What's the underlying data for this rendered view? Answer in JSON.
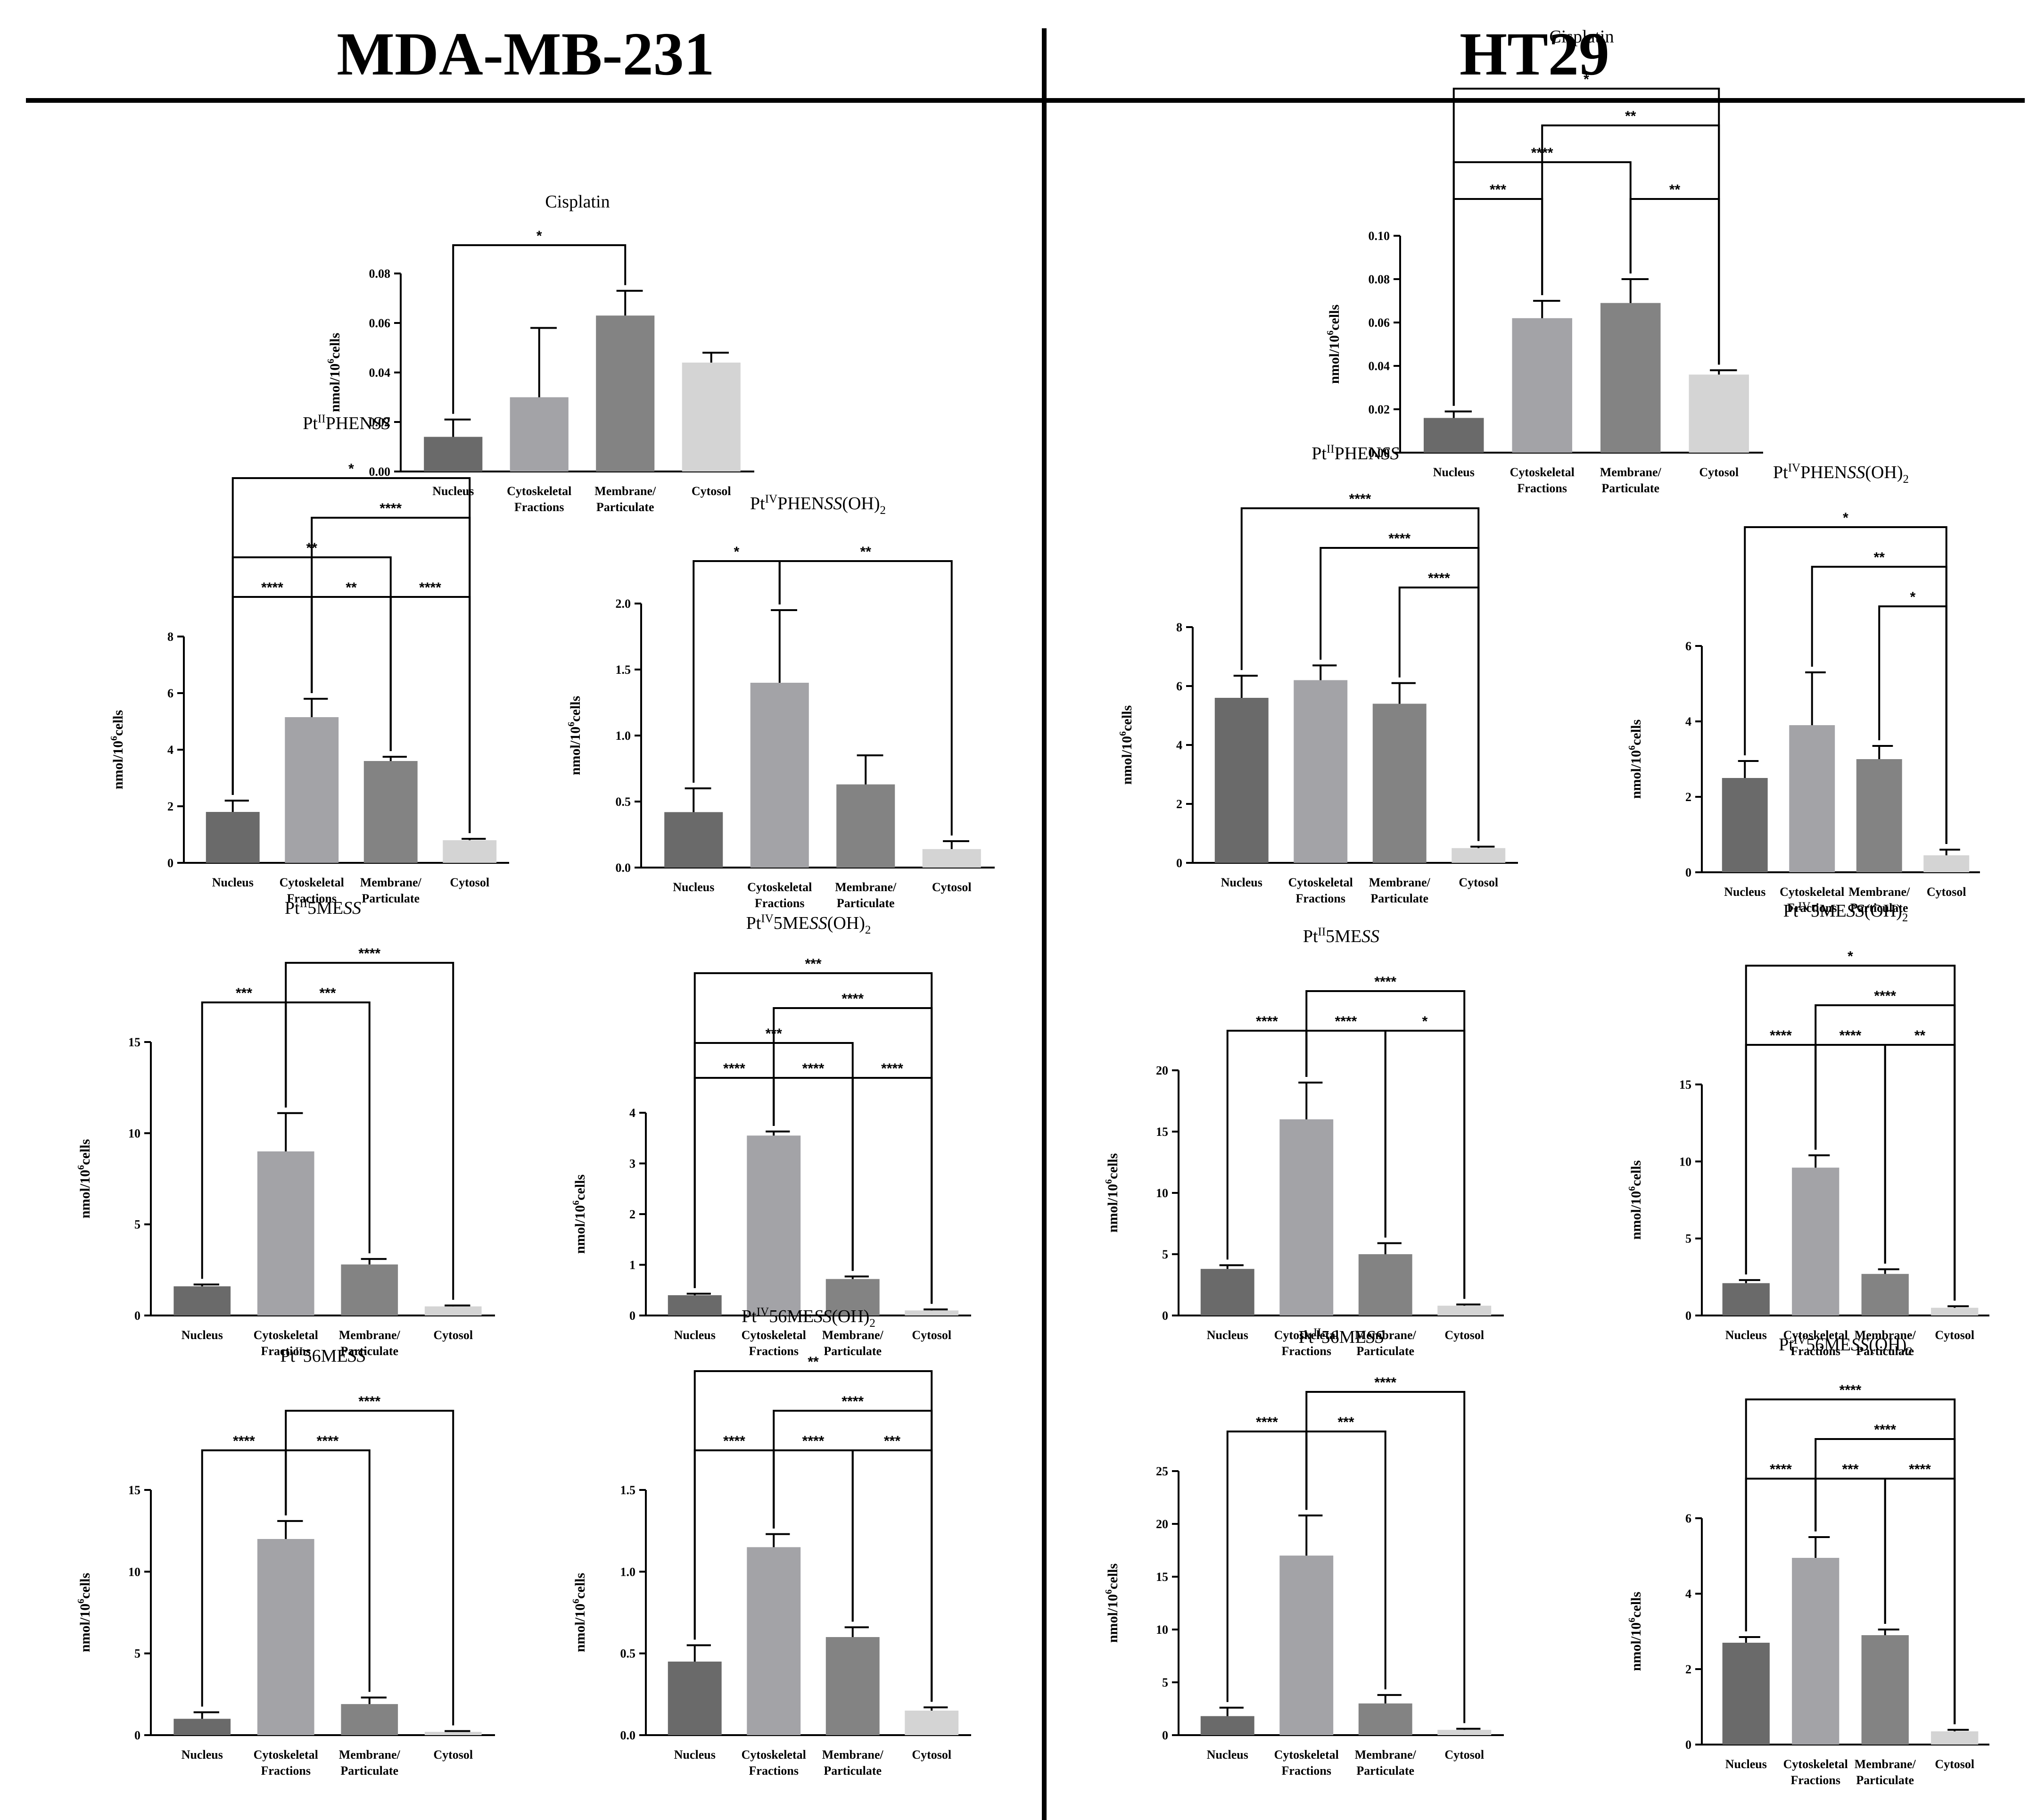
{
  "headers": {
    "left": "MDA-MB-231",
    "right": "HT29"
  },
  "colors": [
    "#6a6a6a",
    "#a3a3a7",
    "#838383",
    "#d4d4d4"
  ],
  "chart_data": [
    {
      "id": "mda-cisplatin",
      "type": "bar",
      "cell_line": "MDA-MB-231",
      "title": {
        "base": "Cisplatin"
      },
      "categories": [
        [
          "Nucleus"
        ],
        [
          "Cytoskeletal",
          "Fractions"
        ],
        [
          "Membrane/",
          "Particulate"
        ],
        [
          "Cytosol"
        ]
      ],
      "values": [
        0.014,
        0.03,
        0.063,
        0.044
      ],
      "errors": [
        0.007,
        0.028,
        0.01,
        0.004
      ],
      "ylim": [
        0,
        0.08
      ],
      "yticks": [
        "0.00",
        "0.02",
        "0.04",
        "0.06",
        "0.08"
      ],
      "ylabel": {
        "pre": "nmol/10",
        "sup": "6",
        "post": "cells"
      },
      "significance": [
        {
          "from": 0,
          "to": 2,
          "label": "*"
        }
      ]
    },
    {
      "id": "ht29-cisplatin",
      "type": "bar",
      "cell_line": "HT29",
      "title": {
        "base": "Cisplatin"
      },
      "categories": [
        [
          "Nucleus"
        ],
        [
          "Cytoskeletal",
          "Fractions"
        ],
        [
          "Membrane/",
          "Particulate"
        ],
        [
          "Cytosol"
        ]
      ],
      "values": [
        0.016,
        0.062,
        0.069,
        0.036
      ],
      "errors": [
        0.003,
        0.008,
        0.011,
        0.002
      ],
      "ylim": [
        0,
        0.1
      ],
      "yticks": [
        "0.00",
        "0.02",
        "0.04",
        "0.06",
        "0.08",
        "0.10"
      ],
      "ylabel": {
        "pre": "nmol/10",
        "sup": "6",
        "post": "cells"
      },
      "significance": [
        {
          "from": 0,
          "to": 1,
          "label": "***"
        },
        {
          "from": 2,
          "to": 3,
          "label": "**"
        },
        {
          "from": 0,
          "to": 2,
          "label": "****"
        },
        {
          "from": 1,
          "to": 3,
          "label": "**"
        },
        {
          "from": 0,
          "to": 3,
          "label": "*"
        }
      ]
    },
    {
      "id": "mda-pt2phen",
      "type": "bar",
      "cell_line": "MDA-MB-231",
      "title": {
        "base": "Pt",
        "sup": "II",
        "mid": "PHEN",
        "ital": "SS"
      },
      "categories": [
        [
          "Nucleus"
        ],
        [
          "Cytoskeletal",
          "Fractions"
        ],
        [
          "Membrane/",
          "Particulate"
        ],
        [
          "Cytosol"
        ]
      ],
      "values": [
        1.8,
        5.15,
        3.6,
        0.8
      ],
      "errors": [
        0.4,
        0.65,
        0.15,
        0.05
      ],
      "ylim": [
        0,
        8
      ],
      "yticks": [
        "0",
        "2",
        "4",
        "6",
        "8"
      ],
      "ylabel": {
        "pre": "nmol/10",
        "sup": "6",
        "post": "cells"
      },
      "significance": [
        {
          "from": 0,
          "to": 1,
          "label": "****"
        },
        {
          "from": 1,
          "to": 2,
          "label": "**"
        },
        {
          "from": 2,
          "to": 3,
          "label": "****"
        },
        {
          "from": 0,
          "to": 2,
          "label": "**"
        },
        {
          "from": 1,
          "to": 3,
          "label": "****"
        },
        {
          "from": 0,
          "to": 3,
          "label": "*"
        }
      ]
    },
    {
      "id": "mda-pt4phen",
      "type": "bar",
      "cell_line": "MDA-MB-231",
      "title": {
        "base": "Pt",
        "sup": "IV",
        "mid": "PHEN",
        "ital": "SS",
        "post": "(OH)",
        "sub": "2"
      },
      "categories": [
        [
          "Nucleus"
        ],
        [
          "Cytoskeletal",
          "Fractions"
        ],
        [
          "Membrane/",
          "Particulate"
        ],
        [
          "Cytosol"
        ]
      ],
      "values": [
        0.42,
        1.4,
        0.63,
        0.14
      ],
      "errors": [
        0.18,
        0.55,
        0.22,
        0.06
      ],
      "ylim": [
        0,
        2.0
      ],
      "yticks": [
        "0.0",
        "0.5",
        "1.0",
        "1.5",
        "2.0"
      ],
      "ylabel": {
        "pre": "nmol/10",
        "sup": "6",
        "post": "cells"
      },
      "significance": [
        {
          "from": 0,
          "to": 1,
          "label": "*"
        },
        {
          "from": 1,
          "to": 3,
          "label": "**"
        }
      ]
    },
    {
      "id": "ht29-pt2phen",
      "type": "bar",
      "cell_line": "HT29",
      "title": {
        "base": "Pt",
        "sup": "II",
        "mid": "PHEN",
        "ital": "SS"
      },
      "categories": [
        [
          "Nucleus"
        ],
        [
          "Cytoskeletal",
          "Fractions"
        ],
        [
          "Membrane/",
          "Particulate"
        ],
        [
          "Cytosol"
        ]
      ],
      "values": [
        5.6,
        6.2,
        5.4,
        0.5
      ],
      "errors": [
        0.75,
        0.5,
        0.7,
        0.05
      ],
      "ylim": [
        0,
        8
      ],
      "yticks": [
        "0",
        "2",
        "4",
        "6",
        "8"
      ],
      "ylabel": {
        "pre": "nmol/10",
        "sup": "6",
        "post": "cells"
      },
      "significance": [
        {
          "from": 2,
          "to": 3,
          "label": "****"
        },
        {
          "from": 1,
          "to": 3,
          "label": "****"
        },
        {
          "from": 0,
          "to": 3,
          "label": "****"
        }
      ]
    },
    {
      "id": "ht29-pt4phen",
      "type": "bar",
      "cell_line": "HT29",
      "title": {
        "base": "Pt",
        "sup": "IV",
        "mid": "PHEN",
        "ital": "SS",
        "post": "(OH)",
        "sub": "2"
      },
      "categories": [
        [
          "Nucleus"
        ],
        [
          "Cytoskeletal",
          "Fractions"
        ],
        [
          "Membrane/",
          "Particulate"
        ],
        [
          "Cytosol"
        ]
      ],
      "values": [
        2.5,
        3.9,
        3.0,
        0.45
      ],
      "errors": [
        0.45,
        1.4,
        0.35,
        0.15
      ],
      "ylim": [
        0,
        6
      ],
      "yticks": [
        "0",
        "2",
        "4",
        "6"
      ],
      "ylabel": {
        "pre": "nmol/10",
        "sup": "6",
        "post": "cells"
      },
      "significance": [
        {
          "from": 2,
          "to": 3,
          "label": "*"
        },
        {
          "from": 1,
          "to": 3,
          "label": "**"
        },
        {
          "from": 0,
          "to": 3,
          "label": "*"
        }
      ]
    },
    {
      "id": "mda-pt25me",
      "type": "bar",
      "cell_line": "MDA-MB-231",
      "title": {
        "base": "Pt",
        "sup": "II",
        "mid": "5ME",
        "ital": "SS"
      },
      "categories": [
        [
          "Nucleus"
        ],
        [
          "Cytoskeletal",
          "Fractions"
        ],
        [
          "Membrane/",
          "Particulate"
        ],
        [
          "Cytosol"
        ]
      ],
      "values": [
        1.6,
        9.0,
        2.8,
        0.5
      ],
      "errors": [
        0.1,
        2.1,
        0.3,
        0.05
      ],
      "ylim": [
        0,
        15
      ],
      "yticks": [
        "0",
        "5",
        "10",
        "15"
      ],
      "ylabel": {
        "pre": "nmol/10",
        "sup": "6",
        "post": "cells"
      },
      "significance": [
        {
          "from": 0,
          "to": 1,
          "label": "***"
        },
        {
          "from": 1,
          "to": 2,
          "label": "***"
        },
        {
          "from": 1,
          "to": 3,
          "label": "****"
        }
      ]
    },
    {
      "id": "mda-pt45me",
      "type": "bar",
      "cell_line": "MDA-MB-231",
      "title": {
        "base": "Pt",
        "sup": "IV",
        "mid": "5ME",
        "ital": "SS",
        "post": "(OH)",
        "sub": "2"
      },
      "categories": [
        [
          "Nucleus"
        ],
        [
          "Cytoskeletal",
          "Fractions"
        ],
        [
          "Membrane/",
          "Particulate"
        ],
        [
          "Cytosol"
        ]
      ],
      "values": [
        0.4,
        3.55,
        0.72,
        0.1
      ],
      "errors": [
        0.03,
        0.08,
        0.05,
        0.02
      ],
      "ylim": [
        0,
        4
      ],
      "yticks": [
        "0",
        "1",
        "2",
        "3",
        "4"
      ],
      "ylabel": {
        "pre": "nmol/10",
        "sup": "6",
        "post": "cells"
      },
      "significance": [
        {
          "from": 0,
          "to": 1,
          "label": "****"
        },
        {
          "from": 1,
          "to": 2,
          "label": "****"
        },
        {
          "from": 2,
          "to": 3,
          "label": "****"
        },
        {
          "from": 0,
          "to": 2,
          "label": "***"
        },
        {
          "from": 1,
          "to": 3,
          "label": "****"
        },
        {
          "from": 0,
          "to": 3,
          "label": "***"
        }
      ]
    },
    {
      "id": "ht29-pt25me",
      "type": "bar",
      "cell_line": "HT29",
      "title": {
        "base": "Pt",
        "sup": "II",
        "mid": "5ME",
        "ital": "SS"
      },
      "categories": [
        [
          "Nucleus"
        ],
        [
          "Cytoskeletal",
          "Fractions"
        ],
        [
          "Membrane/",
          "Particulate"
        ],
        [
          "Cytosol"
        ]
      ],
      "values": [
        3.8,
        16.0,
        5.0,
        0.8
      ],
      "errors": [
        0.3,
        3.0,
        0.9,
        0.1
      ],
      "ylim": [
        0,
        20
      ],
      "yticks": [
        "0",
        "5",
        "10",
        "15",
        "20"
      ],
      "ylabel": {
        "pre": "nmol/10",
        "sup": "6",
        "post": "cells"
      },
      "significance": [
        {
          "from": 0,
          "to": 1,
          "label": "****"
        },
        {
          "from": 1,
          "to": 2,
          "label": "****"
        },
        {
          "from": 2,
          "to": 3,
          "label": "*"
        },
        {
          "from": 1,
          "to": 3,
          "label": "****"
        }
      ]
    },
    {
      "id": "ht29-pt45me",
      "type": "bar",
      "cell_line": "HT29",
      "title": {
        "base": "Pt",
        "sup": "IV",
        "mid": "5ME",
        "ital": "SS",
        "post": "(OH)",
        "sub": "2"
      },
      "categories": [
        [
          "Nucleus"
        ],
        [
          "Cytoskeletal",
          "Fractions"
        ],
        [
          "Membrane/",
          "Particulate"
        ],
        [
          "Cytosol"
        ]
      ],
      "values": [
        2.1,
        9.6,
        2.7,
        0.5
      ],
      "errors": [
        0.2,
        0.8,
        0.3,
        0.1
      ],
      "ylim": [
        0,
        15
      ],
      "yticks": [
        "0",
        "5",
        "10",
        "15"
      ],
      "ylabel": {
        "pre": "nmol/10",
        "sup": "6",
        "post": "cells"
      },
      "significance": [
        {
          "from": 0,
          "to": 1,
          "label": "****"
        },
        {
          "from": 1,
          "to": 2,
          "label": "****"
        },
        {
          "from": 2,
          "to": 3,
          "label": "**"
        },
        {
          "from": 1,
          "to": 3,
          "label": "****"
        },
        {
          "from": 0,
          "to": 3,
          "label": "*"
        }
      ]
    },
    {
      "id": "mda-pt256me",
      "type": "bar",
      "cell_line": "MDA-MB-231",
      "title": {
        "base": "Pt",
        "sup": "II",
        "mid": "56ME",
        "ital": "SS"
      },
      "categories": [
        [
          "Nucleus"
        ],
        [
          "Cytoskeletal",
          "Fractions"
        ],
        [
          "Membrane/",
          "Particulate"
        ],
        [
          "Cytosol"
        ]
      ],
      "values": [
        1.0,
        12.0,
        1.9,
        0.2
      ],
      "errors": [
        0.4,
        1.1,
        0.4,
        0.05
      ],
      "ylim": [
        0,
        15
      ],
      "yticks": [
        "0",
        "5",
        "10",
        "15"
      ],
      "ylabel": {
        "pre": "nmol/10",
        "sup": "6",
        "post": "cells"
      },
      "significance": [
        {
          "from": 0,
          "to": 1,
          "label": "****"
        },
        {
          "from": 1,
          "to": 2,
          "label": "****"
        },
        {
          "from": 1,
          "to": 3,
          "label": "****"
        }
      ]
    },
    {
      "id": "mda-pt456me",
      "type": "bar",
      "cell_line": "MDA-MB-231",
      "title": {
        "base": "Pt",
        "sup": "IV",
        "mid": "56ME",
        "ital": "SS",
        "post": "(OH)",
        "sub": "2"
      },
      "categories": [
        [
          "Nucleus"
        ],
        [
          "Cytoskeletal",
          "Fractions"
        ],
        [
          "Membrane/",
          "Particulate"
        ],
        [
          "Cytosol"
        ]
      ],
      "values": [
        0.45,
        1.15,
        0.6,
        0.15
      ],
      "errors": [
        0.1,
        0.08,
        0.06,
        0.02
      ],
      "ylim": [
        0,
        1.5
      ],
      "yticks": [
        "0.0",
        "0.5",
        "1.0",
        "1.5"
      ],
      "ylabel": {
        "pre": "nmol/10",
        "sup": "6",
        "post": "cells"
      },
      "significance": [
        {
          "from": 0,
          "to": 1,
          "label": "****"
        },
        {
          "from": 1,
          "to": 2,
          "label": "****"
        },
        {
          "from": 2,
          "to": 3,
          "label": "***"
        },
        {
          "from": 1,
          "to": 3,
          "label": "****"
        },
        {
          "from": 0,
          "to": 3,
          "label": "**"
        }
      ]
    },
    {
      "id": "ht29-pt256me",
      "type": "bar",
      "cell_line": "HT29",
      "title": {
        "base": "Pt",
        "sup": "II",
        "mid": "56ME",
        "ital": "SS"
      },
      "categories": [
        [
          "Nucleus"
        ],
        [
          "Cytoskeletal",
          "Fractions"
        ],
        [
          "Membrane/",
          "Particulate"
        ],
        [
          "Cytosol"
        ]
      ],
      "values": [
        1.8,
        17.0,
        3.0,
        0.5
      ],
      "errors": [
        0.8,
        3.8,
        0.8,
        0.1
      ],
      "ylim": [
        0,
        25
      ],
      "yticks": [
        "0",
        "5",
        "10",
        "15",
        "20",
        "25"
      ],
      "ylabel": {
        "pre": "nmol/10",
        "sup": "6",
        "post": "cells"
      },
      "significance": [
        {
          "from": 0,
          "to": 1,
          "label": "****"
        },
        {
          "from": 1,
          "to": 2,
          "label": "***"
        },
        {
          "from": 1,
          "to": 3,
          "label": "****"
        }
      ]
    },
    {
      "id": "ht29-pt456me",
      "type": "bar",
      "cell_line": "HT29",
      "title": {
        "base": "Pt",
        "sup": "IV",
        "mid": "56ME",
        "ital": "SS",
        "post": "(OH)",
        "sub": "2"
      },
      "categories": [
        [
          "Nucleus"
        ],
        [
          "Cytoskeletal",
          "Fractions"
        ],
        [
          "Membrane/",
          "Particulate"
        ],
        [
          "Cytosol"
        ]
      ],
      "values": [
        2.7,
        4.95,
        2.9,
        0.35
      ],
      "errors": [
        0.15,
        0.55,
        0.15,
        0.04
      ],
      "ylim": [
        0,
        6
      ],
      "yticks": [
        "0",
        "2",
        "4",
        "6"
      ],
      "ylabel": {
        "pre": "nmol/10",
        "sup": "6",
        "post": "cells"
      },
      "significance": [
        {
          "from": 0,
          "to": 1,
          "label": "****"
        },
        {
          "from": 1,
          "to": 2,
          "label": "***"
        },
        {
          "from": 2,
          "to": 3,
          "label": "****"
        },
        {
          "from": 1,
          "to": 3,
          "label": "****"
        },
        {
          "from": 0,
          "to": 3,
          "label": "****"
        }
      ]
    }
  ]
}
